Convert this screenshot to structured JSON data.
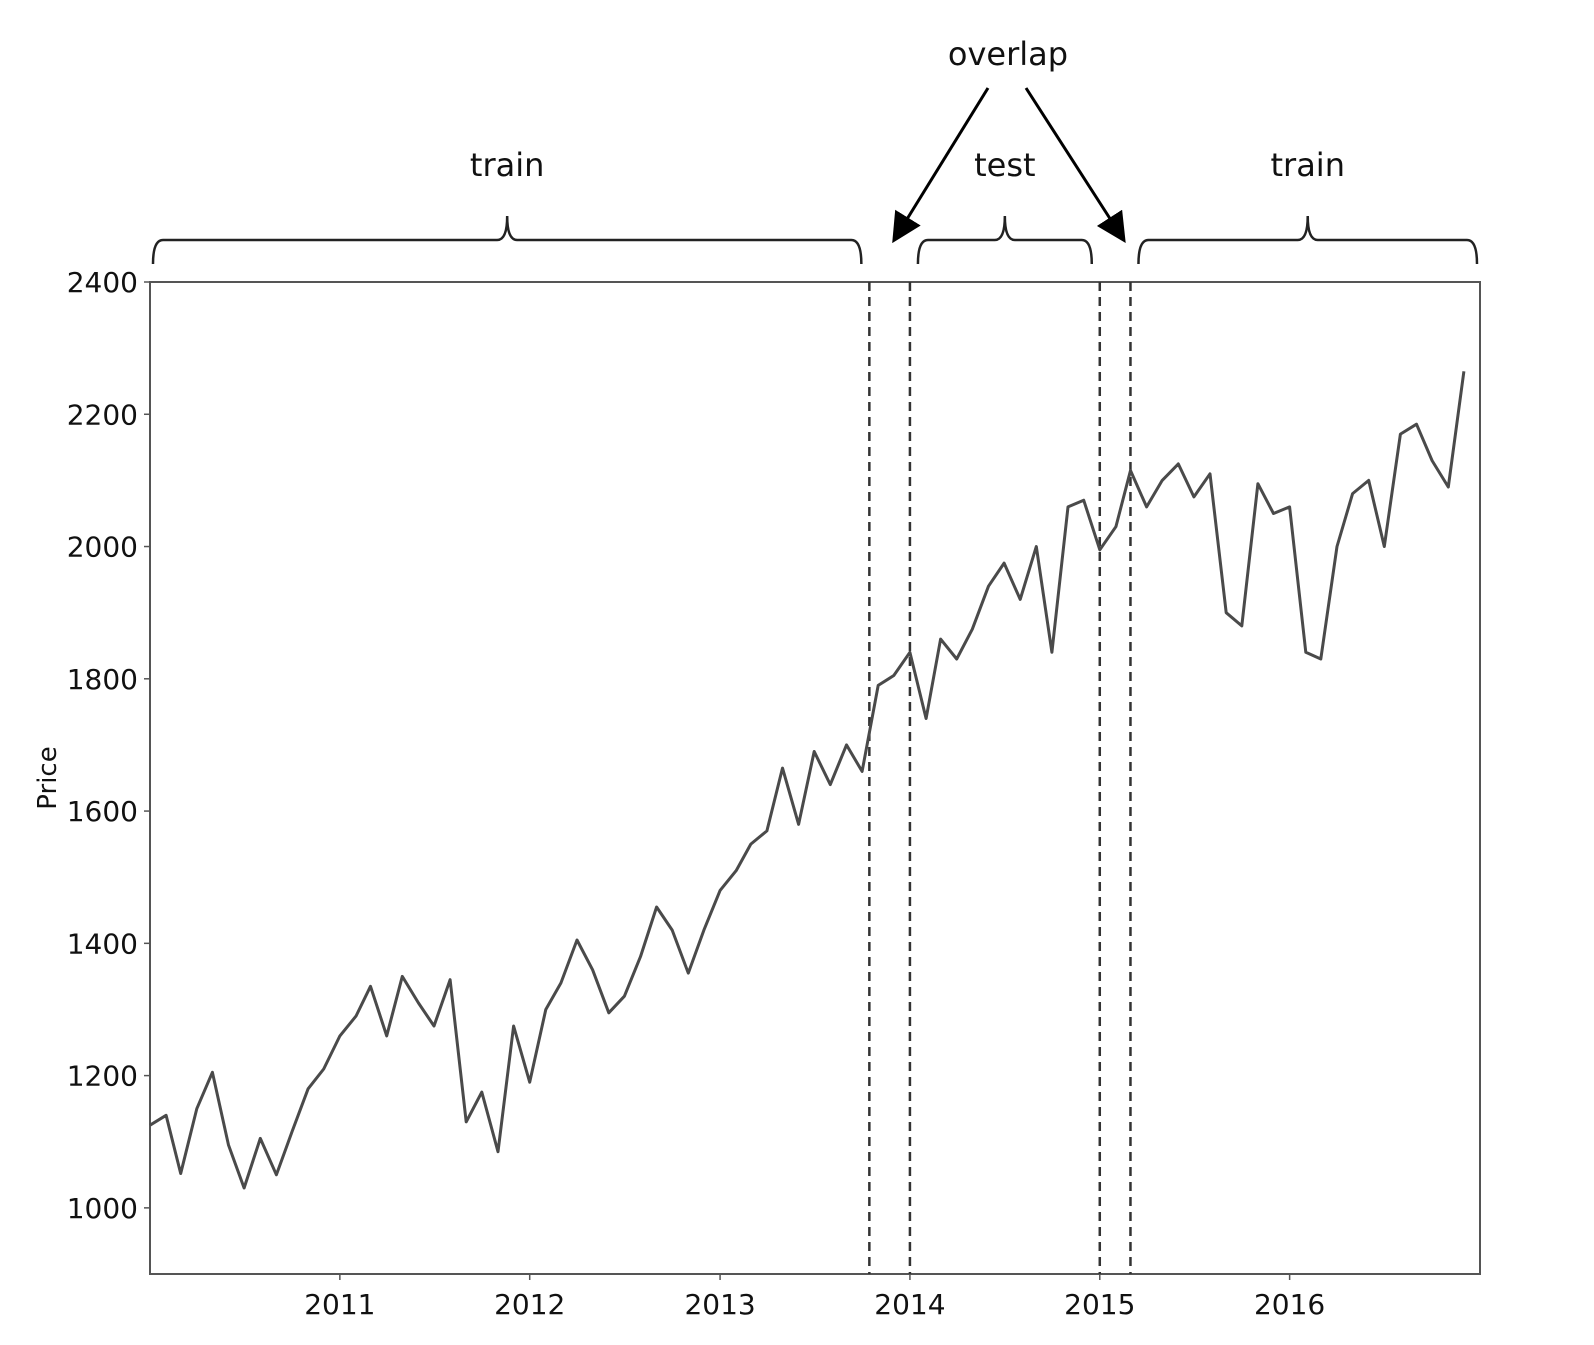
{
  "chart_data": {
    "type": "line",
    "title": "",
    "xlabel": "",
    "ylabel": "Price",
    "xlim": [
      "2010-01-01",
      "2017-01-01"
    ],
    "ylim": [
      900,
      2400
    ],
    "yticks": [
      1000,
      1200,
      1400,
      1600,
      1800,
      2000,
      2200,
      2400
    ],
    "ytick_labels": [
      "1000",
      "1200",
      "1400",
      "1600",
      "1800",
      "2000",
      "2200",
      "2400"
    ],
    "xticks": [
      "2011-01-01",
      "2012-01-01",
      "2013-01-01",
      "2014-01-01",
      "2015-01-01",
      "2016-01-01"
    ],
    "xtick_labels": [
      "2011",
      "2012",
      "2013",
      "2014",
      "2015",
      "2016"
    ],
    "grid": false,
    "series": [
      {
        "color": "#4a4a4a",
        "points": [
          [
            "2010-01-01",
            1125
          ],
          [
            "2010-02-01",
            1140
          ],
          [
            "2010-03-01",
            1052
          ],
          [
            "2010-04-01",
            1150
          ],
          [
            "2010-05-01",
            1205
          ],
          [
            "2010-06-01",
            1095
          ],
          [
            "2010-07-01",
            1030
          ],
          [
            "2010-08-01",
            1105
          ],
          [
            "2010-09-01",
            1050
          ],
          [
            "2010-10-01",
            1115
          ],
          [
            "2010-11-01",
            1180
          ],
          [
            "2010-12-01",
            1210
          ],
          [
            "2011-01-01",
            1260
          ],
          [
            "2011-02-01",
            1290
          ],
          [
            "2011-03-01",
            1335
          ],
          [
            "2011-04-01",
            1260
          ],
          [
            "2011-05-01",
            1350
          ],
          [
            "2011-06-01",
            1310
          ],
          [
            "2011-07-01",
            1275
          ],
          [
            "2011-08-01",
            1345
          ],
          [
            "2011-09-01",
            1130
          ],
          [
            "2011-10-01",
            1175
          ],
          [
            "2011-11-01",
            1085
          ],
          [
            "2011-12-01",
            1275
          ],
          [
            "2012-01-01",
            1190
          ],
          [
            "2012-02-01",
            1300
          ],
          [
            "2012-03-01",
            1340
          ],
          [
            "2012-04-01",
            1405
          ],
          [
            "2012-05-01",
            1360
          ],
          [
            "2012-06-01",
            1295
          ],
          [
            "2012-07-01",
            1320
          ],
          [
            "2012-08-01",
            1380
          ],
          [
            "2012-09-01",
            1455
          ],
          [
            "2012-10-01",
            1420
          ],
          [
            "2012-11-01",
            1355
          ],
          [
            "2012-12-01",
            1420
          ],
          [
            "2013-01-01",
            1480
          ],
          [
            "2013-02-01",
            1510
          ],
          [
            "2013-03-01",
            1550
          ],
          [
            "2013-04-01",
            1570
          ],
          [
            "2013-05-01",
            1665
          ],
          [
            "2013-06-01",
            1580
          ],
          [
            "2013-07-01",
            1690
          ],
          [
            "2013-08-01",
            1640
          ],
          [
            "2013-09-01",
            1700
          ],
          [
            "2013-10-01",
            1660
          ],
          [
            "2013-11-01",
            1790
          ],
          [
            "2013-12-01",
            1805
          ],
          [
            "2014-01-01",
            1840
          ],
          [
            "2014-02-01",
            1740
          ],
          [
            "2014-03-01",
            1860
          ],
          [
            "2014-04-01",
            1830
          ],
          [
            "2014-05-01",
            1875
          ],
          [
            "2014-06-01",
            1940
          ],
          [
            "2014-07-01",
            1975
          ],
          [
            "2014-08-01",
            1920
          ],
          [
            "2014-09-01",
            2000
          ],
          [
            "2014-10-01",
            1840
          ],
          [
            "2014-11-01",
            2060
          ],
          [
            "2014-12-01",
            2070
          ],
          [
            "2015-01-01",
            1995
          ],
          [
            "2015-02-01",
            2030
          ],
          [
            "2015-03-01",
            2115
          ],
          [
            "2015-04-01",
            2060
          ],
          [
            "2015-05-01",
            2100
          ],
          [
            "2015-06-01",
            2125
          ],
          [
            "2015-07-01",
            2075
          ],
          [
            "2015-08-01",
            2110
          ],
          [
            "2015-09-01",
            1900
          ],
          [
            "2015-10-01",
            1880
          ],
          [
            "2015-11-01",
            2095
          ],
          [
            "2015-12-01",
            2050
          ],
          [
            "2016-01-01",
            2060
          ],
          [
            "2016-02-01",
            1840
          ],
          [
            "2016-03-01",
            1830
          ],
          [
            "2016-04-01",
            2000
          ],
          [
            "2016-05-01",
            2080
          ],
          [
            "2016-06-01",
            2100
          ],
          [
            "2016-07-01",
            2000
          ],
          [
            "2016-08-01",
            2170
          ],
          [
            "2016-09-01",
            2185
          ],
          [
            "2016-10-01",
            2130
          ],
          [
            "2016-11-01",
            2090
          ],
          [
            "2016-12-01",
            2265
          ]
        ]
      }
    ],
    "vlines": [
      "2013-10-15",
      "2014-01-01",
      "2015-01-01",
      "2015-03-01"
    ],
    "vline_style": "dashed",
    "annotations": [
      {
        "text": "train",
        "from": "2010-01-01",
        "to": "2013-10-15"
      },
      {
        "text": "test",
        "from": "2014-01-01",
        "to": "2015-01-01"
      },
      {
        "text": "train",
        "from": "2015-03-01",
        "to": "2017-01-01"
      }
    ],
    "callout": {
      "text": "overlap",
      "targets": [
        "2013-10-15",
        "2015-03-01"
      ]
    }
  }
}
